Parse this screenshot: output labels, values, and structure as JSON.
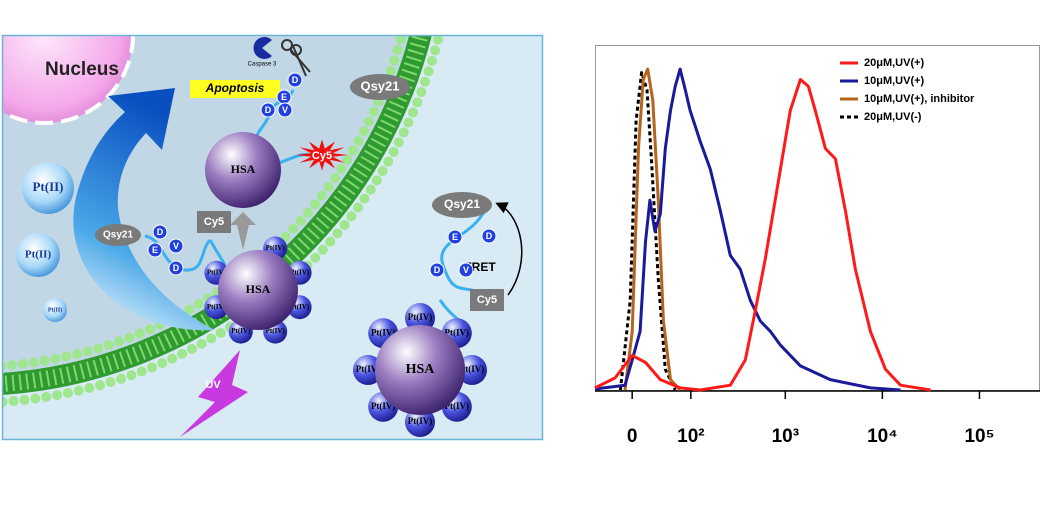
{
  "diagram": {
    "nucleus": "Nucleus",
    "caspase": "Caspase 3",
    "apoptosis": "Apoptosis",
    "qsy21": [
      "Qsy21",
      "Qsy21",
      "Qsy21"
    ],
    "hsa": [
      "HSA",
      "HSA",
      "HSA"
    ],
    "cy5": [
      "Cy5",
      "Cy5",
      "Cy5"
    ],
    "pt_ii": [
      "Pt(II)",
      "Pt(II)",
      "Pt(II)"
    ],
    "pt_iv_middle": [
      "Pt(IV)",
      "Pt(IV)",
      "Pt(IV)",
      "Pt(IV)",
      "Pt(IV)",
      "Pt(IV)",
      "Pt(IV)"
    ],
    "pt_iv_bottom": [
      "Pt(IV)",
      "Pt(IV)",
      "Pt(IV)",
      "Pt(IV)",
      "Pt(IV)",
      "Pt(IV)",
      "Pt(IV)",
      "Pt(IV)"
    ],
    "peptide_top": [
      "D",
      "E",
      "D",
      "V"
    ],
    "peptide_middle": [
      "D",
      "E",
      "V",
      "D"
    ],
    "peptide_right": [
      "E",
      "D",
      "D",
      "V"
    ],
    "fret": "FRET",
    "uv": "UV"
  },
  "chart_data": {
    "type": "line",
    "xscale": "biexponential",
    "xlim": [
      -53,
      420000
    ],
    "ylim": [
      0,
      100
    ],
    "xticks": [
      0,
      {
        "value": 100,
        "label": "10²"
      },
      {
        "value": 1000,
        "label": "10³"
      },
      {
        "value": 10000,
        "label": "10⁴"
      },
      {
        "value": 100000,
        "label": "10⁵"
      }
    ],
    "legend": "upper right",
    "series": [
      {
        "name": "20μM,UV(+)",
        "color": "#ff1a1a",
        "line_style": "solid",
        "x": [
          -53,
          -22,
          0,
          17,
          38,
          74,
          128,
          269,
          386,
          490,
          622,
          889,
          1127,
          1430,
          1730,
          2040,
          2590,
          3280,
          4160,
          5280,
          7530,
          10760,
          15370,
          31400
        ],
        "values": [
          0.6,
          3.5,
          10,
          8,
          3,
          0.6,
          0,
          1.4,
          8.7,
          23,
          38,
          64,
          81,
          90,
          88,
          81,
          70,
          67,
          52,
          35,
          17,
          6,
          1.4,
          0
        ]
      },
      {
        "name": "10μM,UV(+)",
        "color": "#1a1a9a",
        "line_style": "solid",
        "x": [
          -53,
          -9,
          0,
          10,
          17,
          23,
          30,
          38,
          46,
          55,
          64,
          74,
          86,
          98,
          128,
          165,
          211,
          269,
          342,
          435,
          552,
          701,
          889,
          1430,
          2900,
          7530,
          15370
        ],
        "values": [
          0.3,
          1.4,
          8.7,
          17,
          43,
          55,
          46,
          51,
          70,
          81,
          88,
          93,
          87,
          81,
          72,
          64,
          52,
          39,
          35,
          26,
          20,
          17,
          13,
          7,
          3,
          0.6,
          0
        ]
      },
      {
        "name": "10μM,UV(+), inhibitor",
        "color": "#b5651d",
        "line_style": "solid",
        "x": [
          -9,
          0,
          8,
          14,
          20,
          27,
          35,
          43,
          55,
          74
        ],
        "values": [
          0,
          17,
          70,
          90,
          93,
          84,
          55,
          20,
          3,
          0
        ]
      },
      {
        "name": "20μM,UV(-)",
        "color": "#000000",
        "line_style": "dashed",
        "x": [
          -15,
          -2.5,
          5,
          12,
          19,
          25,
          35,
          46,
          64
        ],
        "values": [
          0,
          26,
          78,
          92,
          87,
          67,
          32,
          6,
          0
        ]
      }
    ]
  }
}
